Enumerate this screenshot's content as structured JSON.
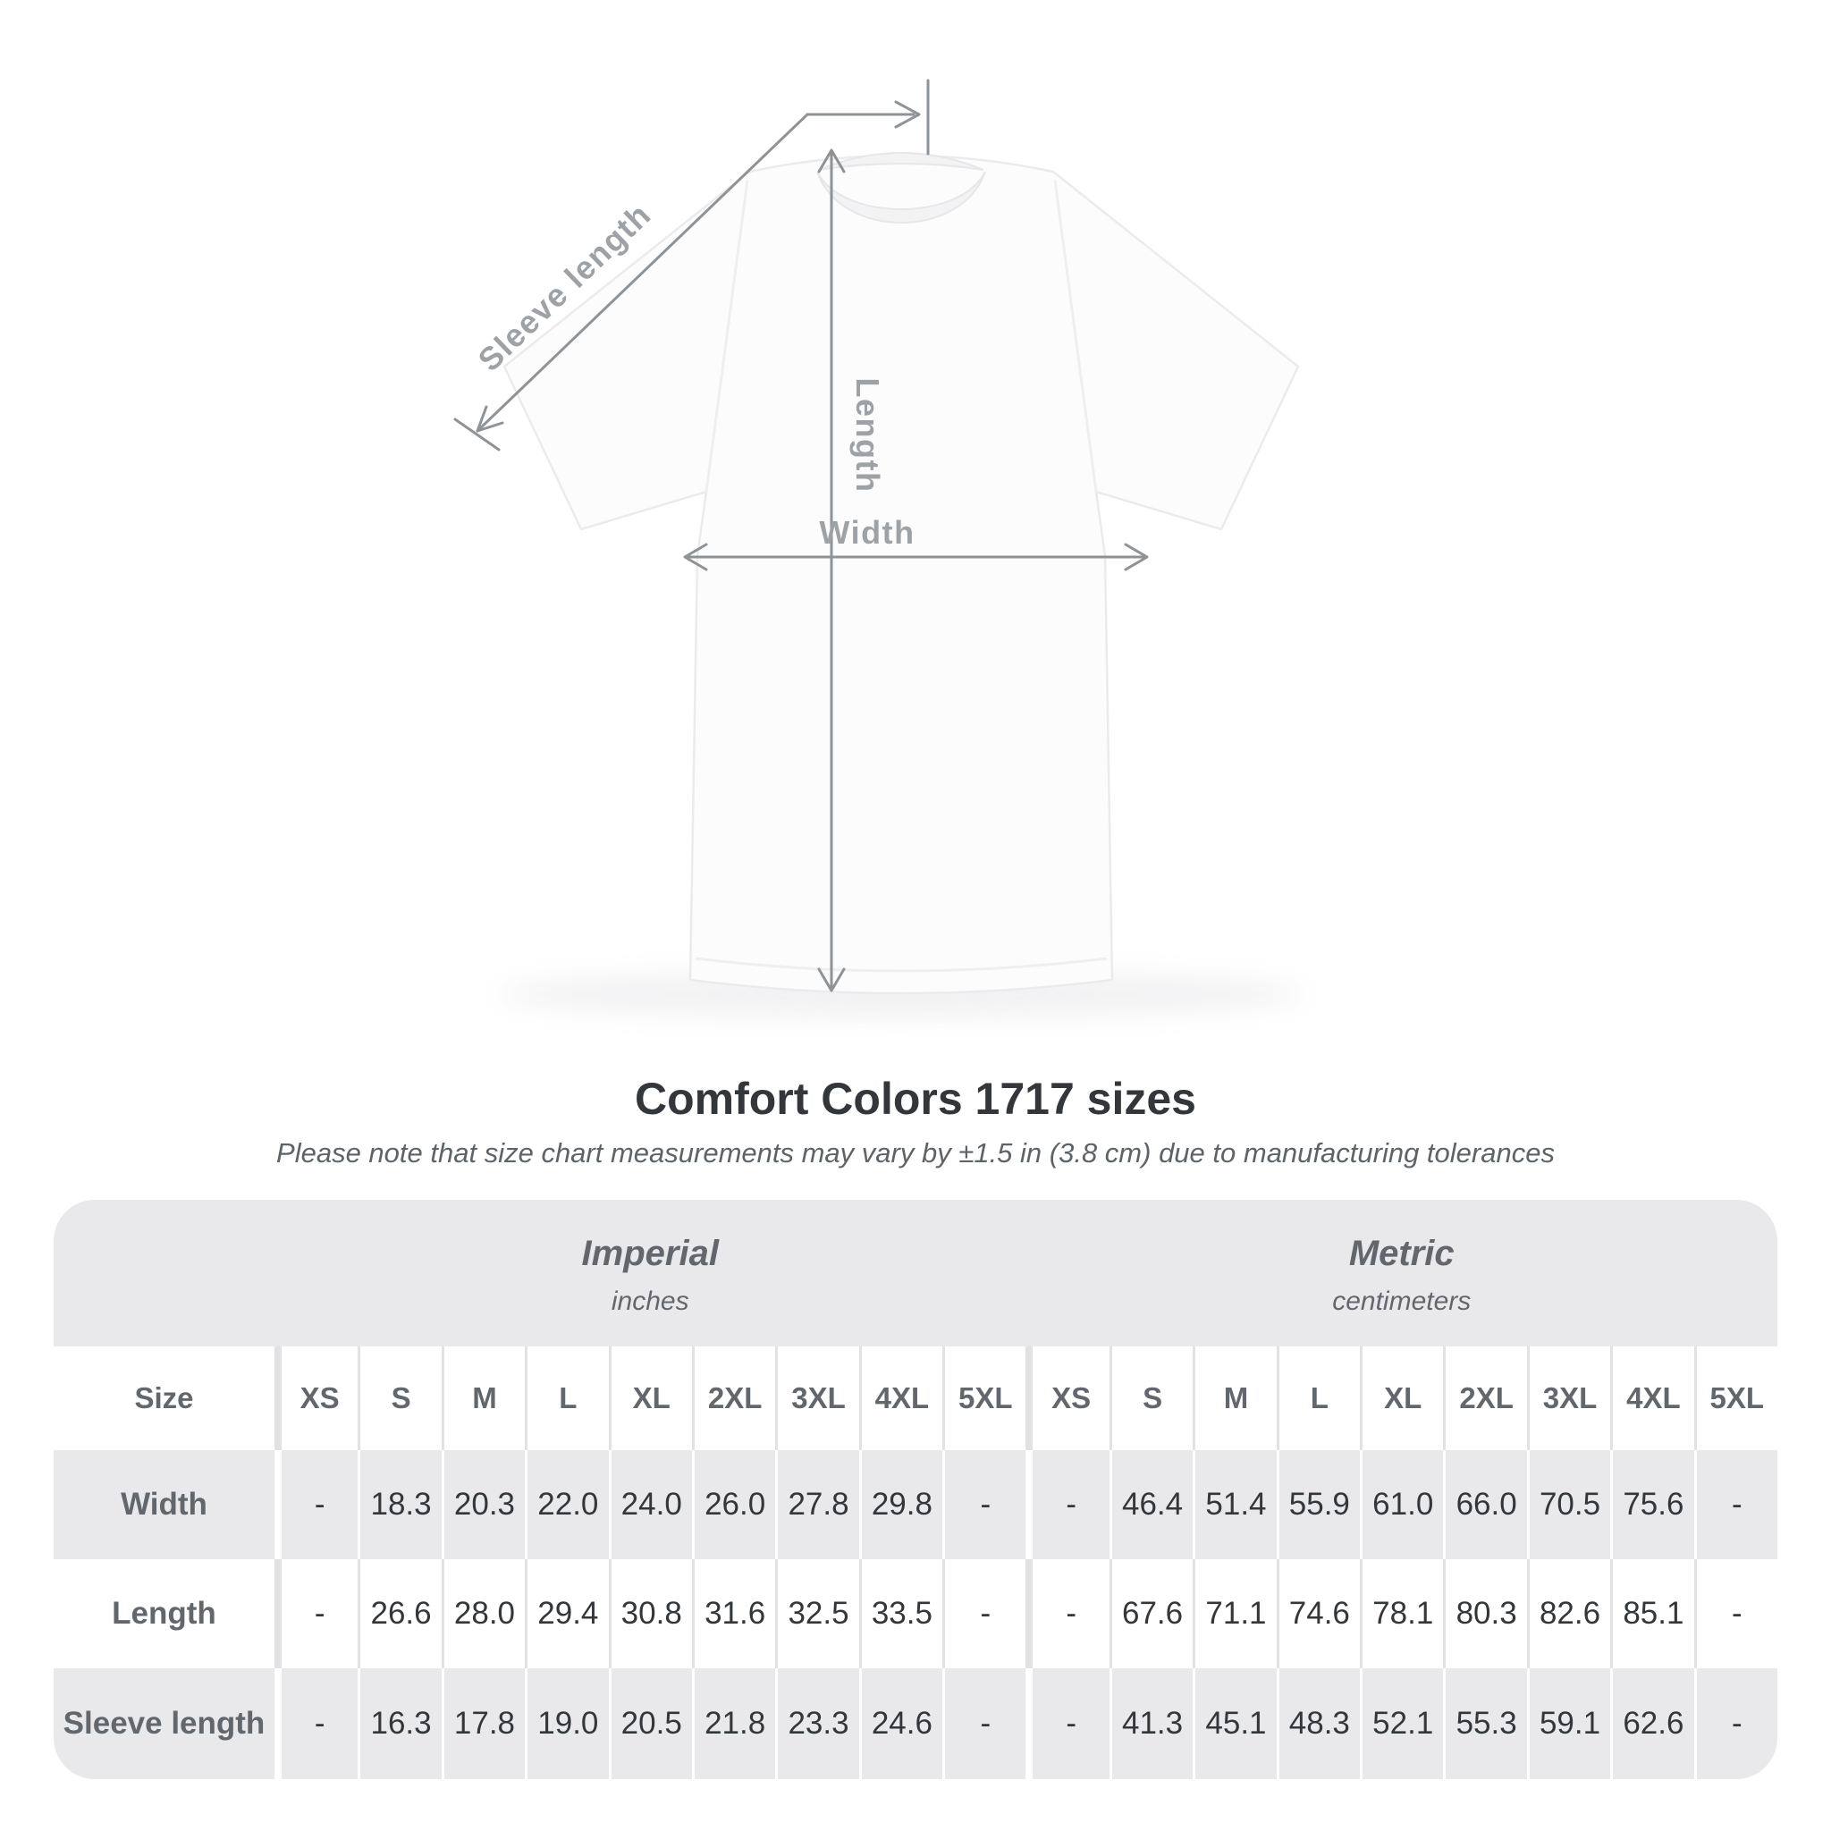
{
  "diagram": {
    "sleeve_label": "Sleeve length",
    "length_label": "Length",
    "width_label": "Width"
  },
  "heading": {
    "title": "Comfort Colors 1717 sizes",
    "note": "Please note that size chart measurements may vary by ±1.5 in (3.8 cm) due to manufacturing tolerances"
  },
  "chart_data": {
    "type": "table",
    "title": "Comfort Colors 1717 sizes",
    "column_groups": [
      {
        "label": "Imperial",
        "unit": "inches"
      },
      {
        "label": "Metric",
        "unit": "centimeters"
      }
    ],
    "size_header": "Size",
    "sizes": [
      "XS",
      "S",
      "M",
      "L",
      "XL",
      "2XL",
      "3XL",
      "4XL",
      "5XL"
    ],
    "rows": [
      {
        "label": "Width",
        "imperial": [
          "-",
          "18.3",
          "20.3",
          "22.0",
          "24.0",
          "26.0",
          "27.8",
          "29.8",
          "-"
        ],
        "metric": [
          "-",
          "46.4",
          "51.4",
          "55.9",
          "61.0",
          "66.0",
          "70.5",
          "75.6",
          "-"
        ]
      },
      {
        "label": "Length",
        "imperial": [
          "-",
          "26.6",
          "28.0",
          "29.4",
          "30.8",
          "31.6",
          "32.5",
          "33.5",
          "-"
        ],
        "metric": [
          "-",
          "67.6",
          "71.1",
          "74.6",
          "78.1",
          "80.3",
          "82.6",
          "85.1",
          "-"
        ]
      },
      {
        "label": "Sleeve length",
        "imperial": [
          "-",
          "16.3",
          "17.8",
          "19.0",
          "20.5",
          "21.8",
          "23.3",
          "24.6",
          "-"
        ],
        "metric": [
          "-",
          "41.3",
          "45.1",
          "48.3",
          "52.1",
          "55.3",
          "59.1",
          "62.6",
          "-"
        ]
      }
    ]
  },
  "colors": {
    "measure_line": "#8e9397",
    "measure_label": "#9da2a7",
    "title_text": "#33373b",
    "note_text": "#5d6367",
    "table_bg": "#e9e9ec",
    "header_text": "#61676c",
    "value_text": "#33373a"
  }
}
